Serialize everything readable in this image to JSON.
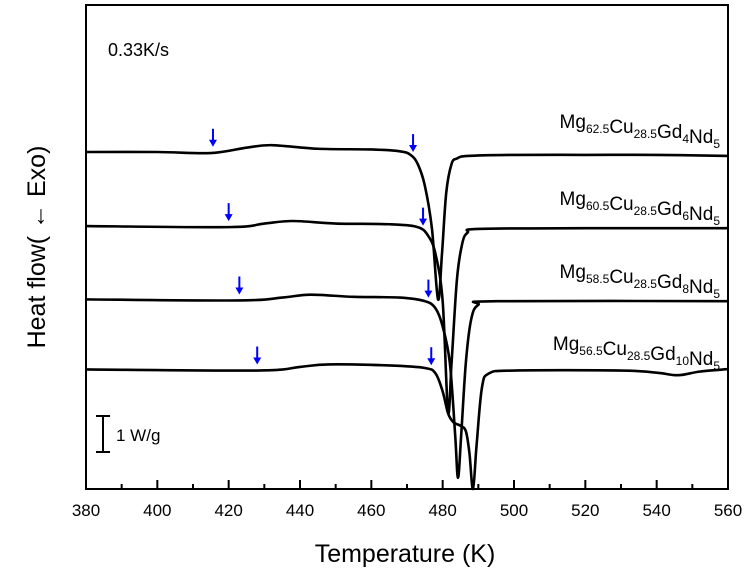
{
  "chart_data": {
    "type": "line",
    "title": "",
    "xlabel": "Temperature (K)",
    "ylabel": "Heat flow( ← Exo)",
    "annotation": "0.33K/s",
    "scale_bar_label": "1 W/g",
    "scale_bar_value": 1,
    "xlim": [
      380,
      560
    ],
    "ylim": [
      0,
      13.4
    ],
    "xticks": [
      380,
      400,
      420,
      440,
      460,
      480,
      500,
      520,
      540,
      560
    ],
    "grid": false,
    "line_color": "#000000",
    "arrow_color": "#0000ff",
    "series": [
      {
        "label": {
          "base": [
            [
              "Mg",
              "62.5"
            ],
            [
              "Cu",
              "28.5"
            ],
            [
              "Gd",
              "4"
            ],
            [
              "Nd",
              "5"
            ]
          ]
        },
        "x": [
          380,
          400,
          415,
          425,
          432,
          445,
          460,
          468,
          471,
          473,
          475,
          477,
          478.7,
          479.8,
          481,
          482.5,
          484,
          487,
          500,
          520,
          540,
          560
        ],
        "y": [
          9.33,
          9.33,
          9.3,
          9.45,
          9.52,
          9.42,
          9.4,
          9.35,
          9.25,
          9.0,
          8.4,
          7.2,
          5.25,
          6.5,
          8.2,
          9.0,
          9.15,
          9.22,
          9.25,
          9.25,
          9.25,
          9.22
        ],
        "arrows": [
          415.6,
          471.7
        ]
      },
      {
        "label": {
          "base": [
            [
              "Mg",
              "60.5"
            ],
            [
              "Cu",
              "28.5"
            ],
            [
              "Gd",
              "6"
            ],
            [
              "Nd",
              "5"
            ]
          ]
        },
        "x": [
          380,
          420,
          430,
          438,
          450,
          465,
          473,
          476,
          478,
          480,
          481.5,
          482.5,
          484,
          485.5,
          487,
          490,
          520,
          560
        ],
        "y": [
          7.28,
          7.25,
          7.35,
          7.42,
          7.35,
          7.33,
          7.25,
          7.0,
          6.5,
          5.2,
          2.14,
          3.5,
          5.8,
          6.8,
          7.1,
          7.2,
          7.22,
          7.22
        ],
        "arrows": [
          420,
          474.5
        ]
      },
      {
        "label": {
          "base": [
            [
              "Mg",
              "58.5"
            ],
            [
              "Cu",
              "28.5"
            ],
            [
              "Gd",
              "8"
            ],
            [
              "Nd",
              "5"
            ]
          ]
        },
        "x": [
          380,
          423,
          435,
          443,
          455,
          468,
          475,
          478,
          480,
          482,
          483.5,
          484.3,
          485.2,
          486.5,
          488,
          490,
          495,
          560
        ],
        "y": [
          5.25,
          5.22,
          5.3,
          5.38,
          5.32,
          5.3,
          5.2,
          5.0,
          4.5,
          3.5,
          1.5,
          0.31,
          1.5,
          3.5,
          4.7,
          5.1,
          5.2,
          5.2
        ],
        "arrows": [
          423,
          476
        ]
      },
      {
        "label": {
          "base": [
            [
              "Mg",
              "56.5"
            ],
            [
              "Cu",
              "28.5"
            ],
            [
              "Gd",
              "10"
            ],
            [
              "Nd",
              "5"
            ]
          ]
        },
        "x": [
          380,
          428,
          440,
          448,
          465,
          475,
          478,
          480,
          481.5,
          483,
          485,
          486.5,
          487.5,
          488.5,
          489.5,
          491,
          493,
          500,
          530,
          540,
          546,
          552,
          560
        ],
        "y": [
          3.31,
          3.28,
          3.38,
          3.45,
          3.42,
          3.35,
          3.2,
          2.7,
          2.1,
          1.85,
          1.75,
          1.6,
          1.0,
          0.0,
          1.2,
          2.8,
          3.2,
          3.28,
          3.28,
          3.22,
          3.15,
          3.25,
          3.32
        ],
        "arrows": [
          428,
          476.8
        ]
      }
    ]
  }
}
